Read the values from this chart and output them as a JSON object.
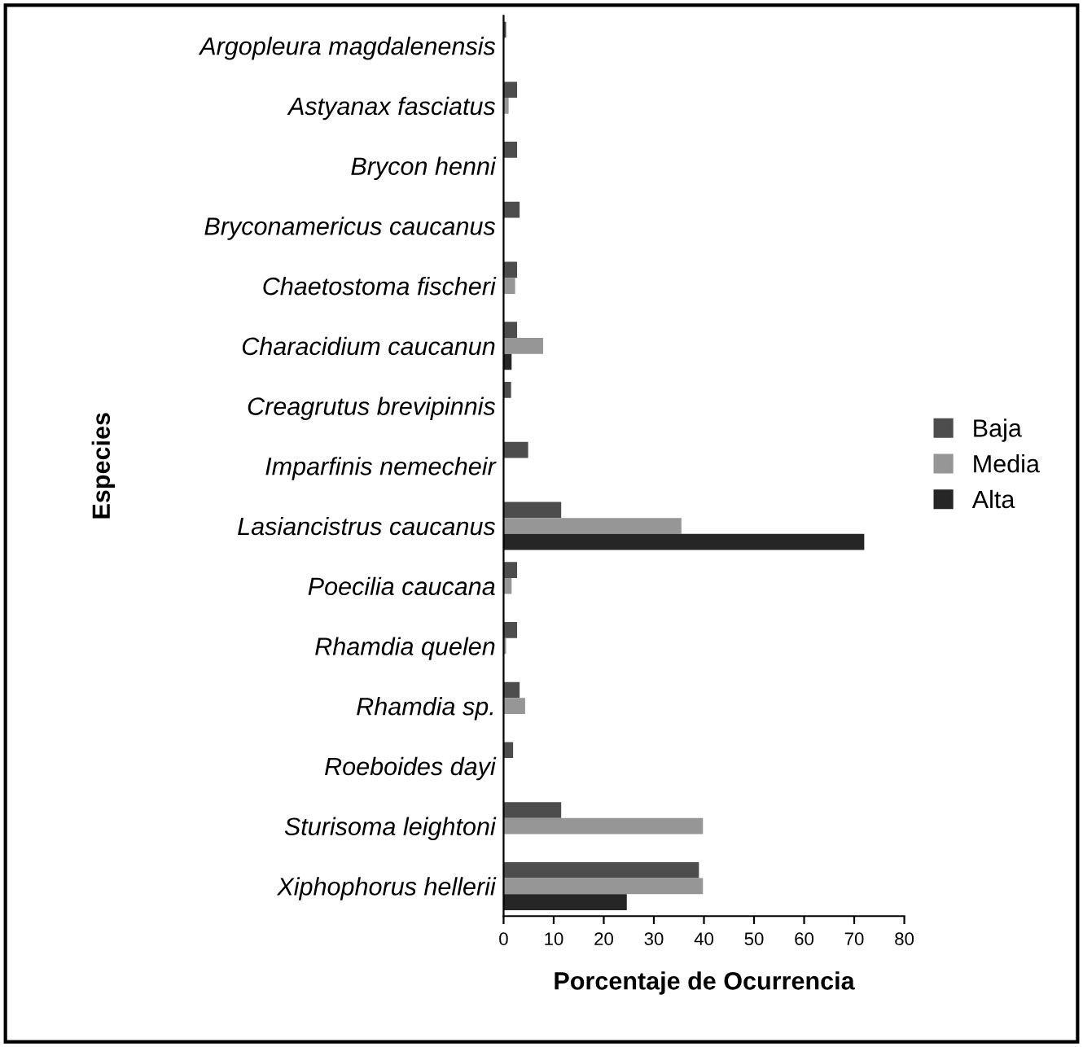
{
  "chart_data": {
    "type": "bar",
    "orientation": "horizontal",
    "xlabel": "Porcentaje de Ocurrencia",
    "ylabel": "Especies",
    "categories": [
      "Argopleura magdalenensis",
      "Astyanax fasciatus",
      "Brycon henni",
      "Bryconamericus caucanus",
      "Chaetostoma fischeri",
      "Characidium caucanun",
      "Creagrutus brevipinnis",
      "Imparfinis nemecheir",
      "Lasiancistrus caucanus",
      "Poecilia caucana",
      "Rhamdia quelen",
      "Rhamdia sp.",
      "Roeboides dayi",
      "Sturisoma leightoni",
      "Xiphophorus hellerii"
    ],
    "series": [
      {
        "name": "Baja",
        "color": "#4d4d4d",
        "values": [
          0.5,
          2.7,
          2.7,
          3.2,
          2.7,
          2.7,
          1.5,
          4.9,
          11.5,
          2.7,
          2.7,
          3.2,
          1.9,
          11.5,
          39
        ]
      },
      {
        "name": "Media",
        "color": "#969696",
        "values": [
          null,
          1,
          null,
          null,
          2.3,
          7.9,
          null,
          null,
          35.5,
          1.6,
          0.5,
          4.3,
          null,
          39.8,
          39.8
        ]
      },
      {
        "name": "Alta",
        "color": "#262626",
        "values": [
          null,
          null,
          null,
          null,
          null,
          1.6,
          null,
          null,
          72,
          null,
          null,
          null,
          null,
          null,
          24.6
        ]
      }
    ],
    "xlim": [
      0,
      80
    ],
    "xticks": [
      0,
      10,
      20,
      30,
      40,
      50,
      60,
      70,
      80
    ],
    "legend": "right",
    "grid": false
  }
}
